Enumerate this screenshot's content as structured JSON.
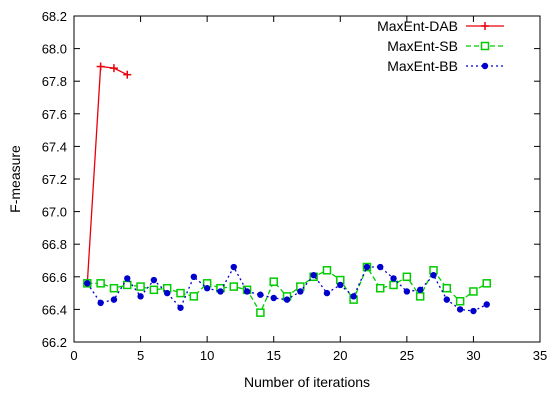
{
  "chart_data": {
    "type": "line",
    "xlabel": "Number of iterations",
    "ylabel": "F-measure",
    "xlim": [
      0,
      35
    ],
    "ylim": [
      66.2,
      68.2
    ],
    "xticks": [
      0,
      5,
      10,
      15,
      20,
      25,
      30,
      35
    ],
    "xtick_labels": [
      "0",
      "5",
      "10",
      "15",
      "20",
      "25",
      "30",
      "35"
    ],
    "yticks": [
      66.2,
      66.4,
      66.6,
      66.8,
      67.0,
      67.2,
      67.4,
      67.6,
      67.8,
      68.0,
      68.2
    ],
    "ytick_labels": [
      "66.2",
      "66.4",
      "66.6",
      "66.8",
      "67.0",
      "67.2",
      "67.4",
      "67.6",
      "67.8",
      "68.0",
      "68.2"
    ],
    "legend_position": "top-right",
    "grid": false,
    "series": [
      {
        "name": "MaxEnt-DAB",
        "color": "#e8000b",
        "style": "solid",
        "marker": "plus",
        "x": [
          1,
          2,
          3,
          4
        ],
        "y": [
          66.56,
          67.89,
          67.88,
          67.84
        ]
      },
      {
        "name": "MaxEnt-SB",
        "color": "#00cc00",
        "style": "dashed",
        "marker": "square",
        "x": [
          1,
          2,
          3,
          4,
          5,
          6,
          7,
          8,
          9,
          10,
          11,
          12,
          13,
          14,
          15,
          16,
          17,
          18,
          19,
          20,
          21,
          22,
          23,
          24,
          25,
          26,
          27,
          28,
          29,
          30,
          31
        ],
        "y": [
          66.56,
          66.56,
          66.53,
          66.55,
          66.54,
          66.52,
          66.53,
          66.5,
          66.48,
          66.56,
          66.53,
          66.54,
          66.52,
          66.38,
          66.57,
          66.48,
          66.54,
          66.6,
          66.64,
          66.58,
          66.46,
          66.66,
          66.53,
          66.55,
          66.6,
          66.48,
          66.64,
          66.53,
          66.45,
          66.51,
          66.56
        ]
      },
      {
        "name": "MaxEnt-BB",
        "color": "#0000cc",
        "style": "dotted",
        "marker": "circle",
        "x": [
          1,
          2,
          3,
          4,
          5,
          6,
          7,
          8,
          9,
          10,
          11,
          12,
          13,
          14,
          15,
          16,
          17,
          18,
          19,
          20,
          21,
          22,
          23,
          24,
          25,
          26,
          27,
          28,
          29,
          30,
          31
        ],
        "y": [
          66.56,
          66.44,
          66.46,
          66.59,
          66.48,
          66.58,
          66.5,
          66.41,
          66.6,
          66.53,
          66.51,
          66.66,
          66.51,
          66.49,
          66.47,
          66.46,
          66.51,
          66.61,
          66.5,
          66.55,
          66.48,
          66.66,
          66.66,
          66.59,
          66.51,
          66.52,
          66.61,
          66.46,
          66.4,
          66.39,
          66.43
        ]
      }
    ]
  }
}
